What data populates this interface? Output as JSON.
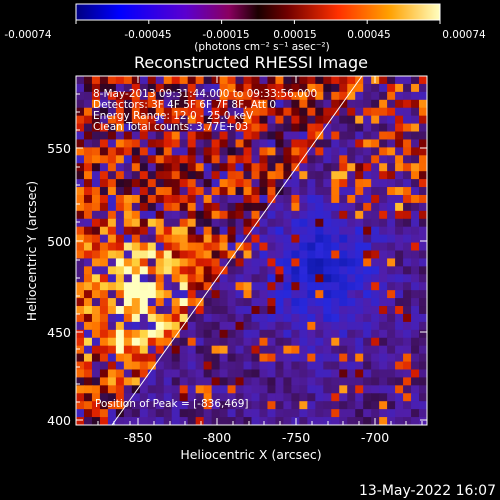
{
  "colorbar": {
    "tick_labels": [
      "-0.00074",
      "-0.00045",
      "-0.00015",
      "0.00015",
      "0.00045",
      "0.00074"
    ],
    "unit_label": "(photons cm⁻² s⁻¹ asec⁻²)"
  },
  "title": "Reconstructed RHESSI Image",
  "info_lines": [
    "8-May-2013 09:31:44.000 to 09:33:56.000",
    "Detectors: 3F 4F 5F 6F 7F 8F, Att 0",
    "Energy Range: 12.0 - 25.0 keV",
    "Clean     Total counts: 3.77E+03"
  ],
  "peak_label": "Position of Peak = [-836,469]",
  "x_axis": {
    "label": "Heliocentric X (arcsec)",
    "tick_labels": [
      "-850",
      "-800",
      "-750",
      "-700"
    ]
  },
  "y_axis": {
    "label": "Heliocentric Y (arcsec)",
    "tick_labels": [
      "400",
      "450",
      "500",
      "550"
    ]
  },
  "footer_timestamp": "13-May-2022 16:07",
  "image_seed": 7
}
